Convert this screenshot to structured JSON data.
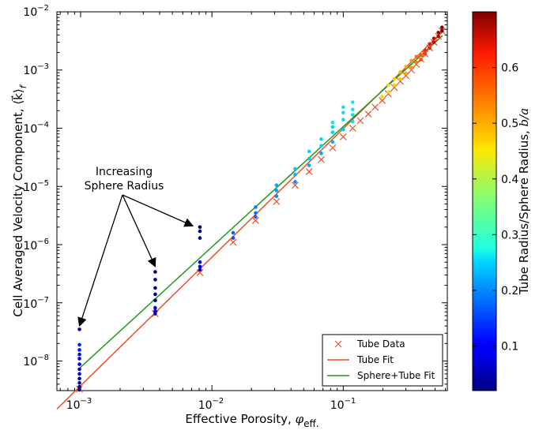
{
  "chart_data": {
    "type": "scatter",
    "xlabel": "Effective Porosity, ",
    "xlabel_math": "φ",
    "xlabel_sub": "eff.",
    "ylabel": "Cell Averaged Velocity Component, ",
    "ylabel_math": "⟨k⃗⟩",
    "ylabel_sub": "f",
    "xscale": "log",
    "yscale": "log",
    "xlim": [
      0.00066,
      0.62
    ],
    "ylim": [
      3.1e-09,
      0.01
    ],
    "x_ticks": [
      {
        "value": 0.001,
        "base": "10",
        "exp": "−3"
      },
      {
        "value": 0.01,
        "base": "10",
        "exp": "−2"
      },
      {
        "value": 0.1,
        "base": "10",
        "exp": "−1"
      }
    ],
    "y_ticks": [
      {
        "value": 1e-08,
        "base": "10",
        "exp": "−8"
      },
      {
        "value": 1e-07,
        "base": "10",
        "exp": "−7"
      },
      {
        "value": 1e-06,
        "base": "10",
        "exp": "−6"
      },
      {
        "value": 1e-05,
        "base": "10",
        "exp": "−5"
      },
      {
        "value": 0.0001,
        "base": "10",
        "exp": "−4"
      },
      {
        "value": 0.001,
        "base": "10",
        "exp": "−3"
      },
      {
        "value": 0.01,
        "base": "10",
        "exp": "−2"
      }
    ],
    "legend": {
      "position": "lower-right",
      "entries": [
        "Tube Data",
        "Tube Fit",
        "Sphere+Tube Fit"
      ]
    },
    "annotation": {
      "line1": "Increasing",
      "line2": "Sphere Radius",
      "targets": [
        [
          0.00098,
          4e-08
        ],
        [
          0.0037,
          4.2e-07
        ],
        [
          0.008,
          2.1e-06
        ]
      ]
    },
    "series": [
      {
        "name": "Tube Data",
        "kind": "marker-x",
        "color": "#e8502a",
        "x": [
          0.00098,
          0.0037,
          0.0081,
          0.0145,
          0.0215,
          0.031,
          0.043,
          0.055,
          0.068,
          0.083,
          0.1,
          0.118,
          0.135,
          0.155,
          0.175,
          0.198,
          0.22,
          0.245,
          0.272,
          0.3,
          0.33,
          0.36,
          0.39,
          0.42,
          0.455,
          0.49,
          0.53,
          0.565
        ],
        "y": [
          3.3e-09,
          6.5e-08,
          3.3e-07,
          1.1e-06,
          2.6e-06,
          5.5e-06,
          1.05e-05,
          1.8e-05,
          2.9e-05,
          4.6e-05,
          7.1e-05,
          0.0001,
          0.000135,
          0.000175,
          0.00023,
          0.0003,
          0.00039,
          0.0005,
          0.00064,
          0.0008,
          0.001,
          0.00125,
          0.00155,
          0.0019,
          0.0024,
          0.003,
          0.0038,
          0.0047
        ]
      },
      {
        "name": "Tube Fit",
        "kind": "line",
        "color": "#e8502a",
        "x": [
          0.00066,
          0.57
        ],
        "y": [
          1.5e-09,
          0.0046
        ]
      },
      {
        "name": "Sphere+Tube Fit",
        "kind": "line",
        "color": "#1b9a1b",
        "x": [
          0.00098,
          0.57
        ],
        "y": [
          7.5e-09,
          0.0039
        ]
      },
      {
        "name": "Sphere data",
        "kind": "dots-colormapped",
        "colorbar_value_field": "c",
        "points": [
          {
            "x": 0.00098,
            "y": 3.2e-09,
            "c": 0.02
          },
          {
            "x": 0.00098,
            "y": 3.6e-09,
            "c": 0.03
          },
          {
            "x": 0.00098,
            "y": 4.2e-09,
            "c": 0.04
          },
          {
            "x": 0.00098,
            "y": 5e-09,
            "c": 0.05
          },
          {
            "x": 0.00098,
            "y": 6e-09,
            "c": 0.06
          },
          {
            "x": 0.00098,
            "y": 7.2e-09,
            "c": 0.07
          },
          {
            "x": 0.00098,
            "y": 8.8e-09,
            "c": 0.08
          },
          {
            "x": 0.00098,
            "y": 1.1e-08,
            "c": 0.09
          },
          {
            "x": 0.00098,
            "y": 1.3e-08,
            "c": 0.1
          },
          {
            "x": 0.00098,
            "y": 1.55e-08,
            "c": 0.11
          },
          {
            "x": 0.00098,
            "y": 1.9e-08,
            "c": 0.12
          },
          {
            "x": 0.00098,
            "y": 3.5e-08,
            "c": 0.02
          },
          {
            "x": 0.0037,
            "y": 6.5e-08,
            "c": 0.05
          },
          {
            "x": 0.0037,
            "y": 7.2e-08,
            "c": 0.06
          },
          {
            "x": 0.0037,
            "y": 8.2e-08,
            "c": 0.07
          },
          {
            "x": 0.0037,
            "y": 1.1e-07,
            "c": 0.03
          },
          {
            "x": 0.0037,
            "y": 1.4e-07,
            "c": 0.03
          },
          {
            "x": 0.0037,
            "y": 1.8e-07,
            "c": 0.03
          },
          {
            "x": 0.0037,
            "y": 2.5e-07,
            "c": 0.02
          },
          {
            "x": 0.0037,
            "y": 3.4e-07,
            "c": 0.02
          },
          {
            "x": 0.0081,
            "y": 3.7e-07,
            "c": 0.07
          },
          {
            "x": 0.0081,
            "y": 4.2e-07,
            "c": 0.08
          },
          {
            "x": 0.0081,
            "y": 5e-07,
            "c": 0.09
          },
          {
            "x": 0.0081,
            "y": 1.3e-06,
            "c": 0.03
          },
          {
            "x": 0.0081,
            "y": 1.7e-06,
            "c": 0.02
          },
          {
            "x": 0.0081,
            "y": 2e-06,
            "c": 0.02
          },
          {
            "x": 0.0145,
            "y": 1.3e-06,
            "c": 0.15
          },
          {
            "x": 0.0145,
            "y": 1.6e-06,
            "c": 0.17
          },
          {
            "x": 0.0215,
            "y": 3e-06,
            "c": 0.17
          },
          {
            "x": 0.0215,
            "y": 3.5e-06,
            "c": 0.18
          },
          {
            "x": 0.0215,
            "y": 4.4e-06,
            "c": 0.19
          },
          {
            "x": 0.031,
            "y": 6.8e-06,
            "c": 0.2
          },
          {
            "x": 0.031,
            "y": 8.5e-06,
            "c": 0.21
          },
          {
            "x": 0.031,
            "y": 1.05e-05,
            "c": 0.22
          },
          {
            "x": 0.043,
            "y": 1.2e-05,
            "c": 0.2
          },
          {
            "x": 0.043,
            "y": 1.6e-05,
            "c": 0.23
          },
          {
            "x": 0.043,
            "y": 2e-05,
            "c": 0.24
          },
          {
            "x": 0.055,
            "y": 2.3e-05,
            "c": 0.22
          },
          {
            "x": 0.055,
            "y": 3e-05,
            "c": 0.24
          },
          {
            "x": 0.055,
            "y": 4e-05,
            "c": 0.25
          },
          {
            "x": 0.068,
            "y": 3.7e-05,
            "c": 0.22
          },
          {
            "x": 0.068,
            "y": 5e-05,
            "c": 0.25
          },
          {
            "x": 0.068,
            "y": 6.5e-05,
            "c": 0.26
          },
          {
            "x": 0.083,
            "y": 5.8e-05,
            "c": 0.23
          },
          {
            "x": 0.083,
            "y": 8.5e-05,
            "c": 0.25
          },
          {
            "x": 0.083,
            "y": 0.000105,
            "c": 0.26
          },
          {
            "x": 0.083,
            "y": 0.000125,
            "c": 0.27
          },
          {
            "x": 0.1,
            "y": 9.5e-05,
            "c": 0.24
          },
          {
            "x": 0.1,
            "y": 0.00014,
            "c": 0.26
          },
          {
            "x": 0.1,
            "y": 0.000185,
            "c": 0.27
          },
          {
            "x": 0.1,
            "y": 0.00023,
            "c": 0.28
          },
          {
            "x": 0.118,
            "y": 0.00013,
            "c": 0.27
          },
          {
            "x": 0.118,
            "y": 0.00017,
            "c": 0.27
          },
          {
            "x": 0.118,
            "y": 0.00021,
            "c": 0.28
          },
          {
            "x": 0.118,
            "y": 0.00028,
            "c": 0.28
          },
          {
            "x": 0.198,
            "y": 0.00035,
            "c": 0.45
          },
          {
            "x": 0.22,
            "y": 0.00042,
            "c": 0.44
          },
          {
            "x": 0.22,
            "y": 0.00055,
            "c": 0.46
          },
          {
            "x": 0.245,
            "y": 0.00055,
            "c": 0.46
          },
          {
            "x": 0.245,
            "y": 0.0007,
            "c": 0.47
          },
          {
            "x": 0.272,
            "y": 0.0007,
            "c": 0.48
          },
          {
            "x": 0.272,
            "y": 0.00092,
            "c": 0.5
          },
          {
            "x": 0.3,
            "y": 0.00088,
            "c": 0.5
          },
          {
            "x": 0.3,
            "y": 0.00115,
            "c": 0.5
          },
          {
            "x": 0.33,
            "y": 0.0011,
            "c": 0.52
          },
          {
            "x": 0.33,
            "y": 0.00145,
            "c": 0.52
          },
          {
            "x": 0.36,
            "y": 0.00135,
            "c": 0.54
          },
          {
            "x": 0.36,
            "y": 0.0017,
            "c": 0.55
          },
          {
            "x": 0.39,
            "y": 0.0015,
            "c": 0.58
          },
          {
            "x": 0.39,
            "y": 0.0018,
            "c": 0.57
          },
          {
            "x": 0.42,
            "y": 0.0019,
            "c": 0.6
          },
          {
            "x": 0.42,
            "y": 0.0022,
            "c": 0.62
          },
          {
            "x": 0.455,
            "y": 0.0024,
            "c": 0.63
          },
          {
            "x": 0.455,
            "y": 0.0028,
            "c": 0.64
          },
          {
            "x": 0.49,
            "y": 0.003,
            "c": 0.66
          },
          {
            "x": 0.49,
            "y": 0.0035,
            "c": 0.67
          },
          {
            "x": 0.53,
            "y": 0.0038,
            "c": 0.68
          },
          {
            "x": 0.53,
            "y": 0.0044,
            "c": 0.69
          },
          {
            "x": 0.565,
            "y": 0.0047,
            "c": 0.7
          },
          {
            "x": 0.565,
            "y": 0.0054,
            "c": 0.7
          }
        ]
      }
    ],
    "colorbar": {
      "label": "Tube Radius/Sphere Radius, ",
      "label_math": "b/a",
      "range": [
        0.02,
        0.7
      ],
      "ticks": [
        "0.1",
        "0.2",
        "0.3",
        "0.4",
        "0.5",
        "0.6"
      ],
      "tick_values": [
        0.1,
        0.2,
        0.3,
        0.4,
        0.5,
        0.6
      ],
      "colormap": "jet"
    }
  }
}
